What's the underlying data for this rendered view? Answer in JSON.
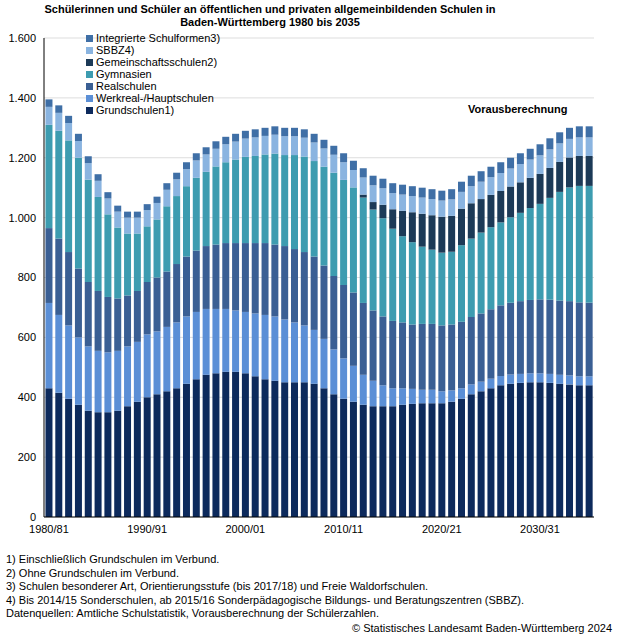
{
  "chart_data": {
    "type": "bar",
    "title": "Schülerinnen und Schüler an öffentlichen und privaten allgemeinbildenden Schulen in Baden-Württemberg 1980 bis 2035",
    "stacked": true,
    "grid": true,
    "legend": "upper left",
    "annotations": [
      {
        "text": "Vorausberechnung"
      }
    ],
    "categories": [
      "1980/81",
      null,
      null,
      null,
      null,
      null,
      null,
      null,
      null,
      null,
      "1990/91",
      null,
      null,
      null,
      null,
      null,
      null,
      null,
      null,
      null,
      "2000/01",
      null,
      null,
      null,
      null,
      null,
      null,
      null,
      null,
      null,
      "2010/11",
      null,
      null,
      null,
      null,
      null,
      null,
      null,
      null,
      null,
      "2020/21",
      null,
      null,
      null,
      null,
      null,
      null,
      null,
      null,
      null,
      "2030/31",
      null,
      null,
      null,
      null,
      null
    ],
    "ylim": [
      0,
      1600
    ],
    "yticks": [
      0,
      200,
      400,
      600,
      800,
      {
        "value": 1000,
        "label": "1.000"
      },
      {
        "value": 1200,
        "label": "1.200"
      },
      {
        "value": 1400,
        "label": "1.400"
      },
      {
        "value": 1600,
        "label": "1.600"
      }
    ],
    "series": [
      {
        "name": "Grundschulen1)",
        "color": "#0d2a5c",
        "values": [
          430,
          415,
          395,
          375,
          355,
          350,
          350,
          355,
          370,
          385,
          400,
          410,
          420,
          430,
          445,
          460,
          475,
          480,
          485,
          485,
          480,
          470,
          460,
          455,
          450,
          450,
          450,
          445,
          430,
          410,
          395,
          385,
          375,
          370,
          370,
          370,
          375,
          378,
          380,
          380,
          380,
          385,
          395,
          410,
          420,
          430,
          440,
          445,
          448,
          450,
          450,
          448,
          445,
          443,
          440,
          440
        ]
      },
      {
        "name": "Werkreal-/Hauptschulen",
        "color": "#5b8fd6",
        "values": [
          285,
          260,
          245,
          225,
          215,
          205,
          200,
          200,
          200,
          200,
          210,
          210,
          215,
          220,
          225,
          225,
          220,
          215,
          210,
          205,
          205,
          210,
          215,
          215,
          210,
          200,
          190,
          180,
          165,
          150,
          135,
          120,
          100,
          85,
          70,
          60,
          55,
          50,
          45,
          45,
          40,
          38,
          35,
          33,
          32,
          32,
          31,
          31,
          30,
          30,
          30,
          30,
          30,
          30,
          30,
          30
        ]
      },
      {
        "name": "Realschulen",
        "color": "#3a5f94",
        "values": [
          250,
          255,
          245,
          230,
          215,
          200,
          185,
          175,
          170,
          170,
          175,
          180,
          185,
          195,
          200,
          205,
          210,
          215,
          220,
          225,
          230,
          235,
          240,
          240,
          245,
          245,
          245,
          245,
          245,
          245,
          245,
          245,
          240,
          235,
          230,
          225,
          220,
          215,
          220,
          220,
          220,
          220,
          222,
          225,
          228,
          232,
          236,
          240,
          243,
          245,
          247,
          248,
          248,
          248,
          247,
          246
        ]
      },
      {
        "name": "Gymnasien",
        "color": "#3d9cb0",
        "values": [
          345,
          360,
          373,
          370,
          342,
          314,
          276,
          237,
          207,
          192,
          186,
          194,
          218,
          227,
          235,
          243,
          248,
          261,
          270,
          279,
          288,
          291,
          296,
          304,
          304,
          314,
          319,
          319,
          330,
          345,
          351,
          351,
          352,
          337,
          328,
          308,
          288,
          275,
          258,
          248,
          243,
          243,
          256,
          262,
          270,
          274,
          277,
          285,
          295,
          307,
          319,
          340,
          363,
          380,
          389,
          390
        ]
      },
      {
        "name": "Gemeinschaftsschulen2)",
        "color": "#1c3a57",
        "values": [
          0,
          0,
          0,
          0,
          0,
          0,
          0,
          0,
          0,
          0,
          0,
          0,
          0,
          0,
          0,
          0,
          0,
          0,
          0,
          0,
          0,
          0,
          0,
          0,
          0,
          0,
          0,
          0,
          0,
          0,
          0,
          0,
          10,
          25,
          45,
          65,
          85,
          100,
          110,
          115,
          120,
          120,
          122,
          118,
          112,
          108,
          105,
          103,
          102,
          101,
          100,
          100,
          100,
          100,
          100,
          100
        ]
      },
      {
        "name": "SBBZ4)",
        "color": "#8ab4e0",
        "values": [
          60,
          60,
          58,
          56,
          55,
          54,
          53,
          53,
          53,
          53,
          54,
          55,
          55,
          56,
          57,
          58,
          58,
          59,
          60,
          60,
          61,
          62,
          62,
          63,
          63,
          63,
          63,
          62,
          61,
          60,
          59,
          58,
          57,
          56,
          55,
          54,
          54,
          54,
          54,
          54,
          54,
          55,
          56,
          57,
          58,
          59,
          60,
          60,
          61,
          61,
          62,
          62,
          62,
          62,
          62,
          62
        ]
      },
      {
        "name": "Integrierte Schulformen3)",
        "color": "#3f6fa6",
        "values": [
          25,
          25,
          24,
          24,
          23,
          22,
          21,
          20,
          20,
          20,
          20,
          21,
          22,
          22,
          23,
          24,
          24,
          25,
          25,
          26,
          26,
          27,
          27,
          28,
          28,
          28,
          28,
          29,
          29,
          30,
          30,
          31,
          31,
          32,
          32,
          33,
          33,
          33,
          33,
          33,
          33,
          34,
          34,
          35,
          35,
          35,
          36,
          36,
          36,
          36,
          37,
          37,
          37,
          37,
          37,
          37
        ]
      }
    ],
    "notes": [
      "1) Einschließlich Grundschulen im Verbund.",
      "2) Ohne Grundschulen im Verbund.",
      "3) Schulen besonderer Art, Orientierungsstufe (bis 2017/18) und Freie Waldorfschulen.",
      "4) Bis 2014/15 Sonderschulen, ab 2015/16 Sonderpädagogische Bildungs- und Beratungszentren (SBBZ)."
    ],
    "source": "Datenquellen: Amtliche Schulstatistik, Vorausberechnung der Schülerzahlen.",
    "copyright": "© Statistisches Landesamt Baden-Württemberg 2024"
  }
}
